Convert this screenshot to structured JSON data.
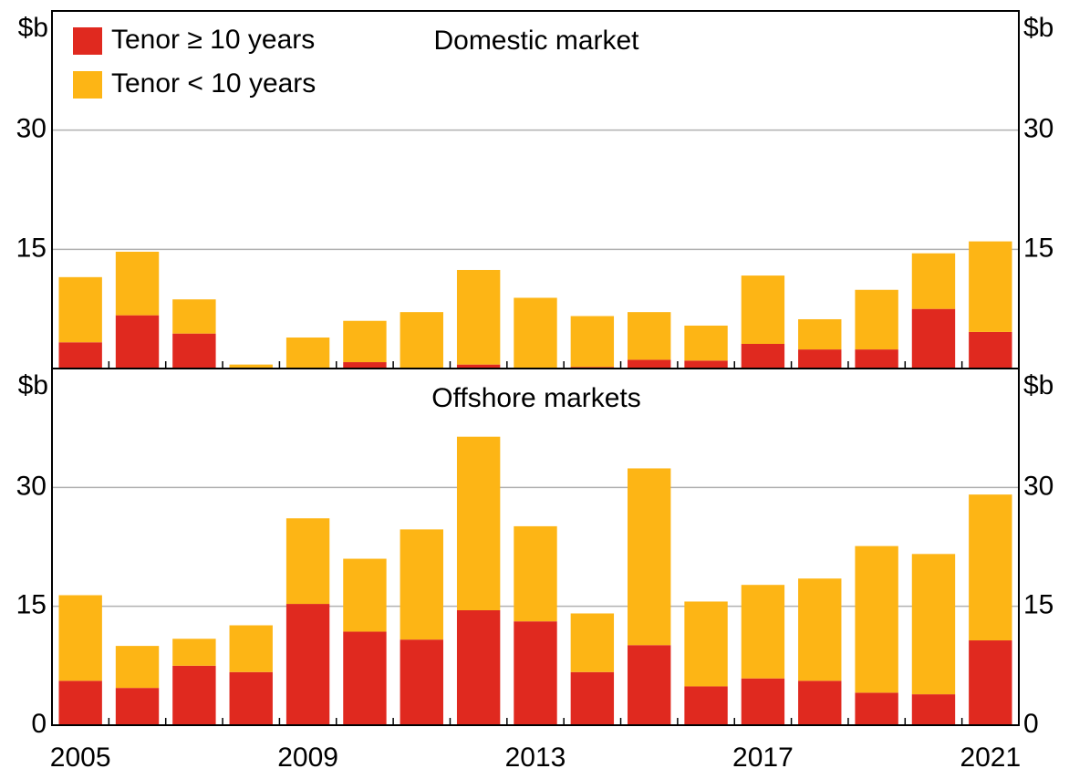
{
  "chart_data": [
    {
      "type": "bar",
      "stacked": true,
      "title": "Domestic market",
      "ylabel": "$b",
      "ylim": [
        0,
        45
      ],
      "yticks": [
        15,
        30
      ],
      "grid": true,
      "legend": "upper left",
      "series": [
        {
          "name": "Tenor ≥ 10 years",
          "color": "#e0291f",
          "values": [
            3.3,
            6.7,
            4.4,
            0.1,
            0,
            0.8,
            0.1,
            0.5,
            0,
            0.2,
            1.1,
            1.0,
            3.1,
            2.4,
            2.4,
            7.5,
            4.6
          ]
        },
        {
          "name": "Tenor < 10 years",
          "color": "#fdb515",
          "values": [
            8.2,
            8.0,
            4.3,
            0.4,
            3.9,
            5.2,
            7.0,
            11.9,
            8.9,
            6.4,
            6.0,
            4.4,
            8.6,
            3.8,
            7.5,
            7.0,
            11.4
          ]
        }
      ]
    },
    {
      "type": "bar",
      "stacked": true,
      "title": "Offshore markets",
      "ylabel": "$b",
      "categories": [
        "2005",
        null,
        null,
        null,
        "2009",
        null,
        null,
        null,
        "2013",
        null,
        null,
        null,
        "2017",
        null,
        null,
        null,
        "2021"
      ],
      "ylim": [
        0,
        45
      ],
      "yticks": [
        0,
        15,
        30
      ],
      "grid": true,
      "series": [
        {
          "color": "#e0291f",
          "values": [
            5.6,
            4.7,
            7.5,
            6.7,
            15.3,
            11.8,
            10.8,
            14.5,
            13.1,
            6.7,
            10.1,
            4.9,
            5.9,
            5.6,
            4.1,
            3.9,
            10.7
          ]
        },
        {
          "color": "#fdb515",
          "values": [
            10.8,
            5.3,
            3.4,
            5.9,
            10.8,
            9.2,
            13.9,
            21.9,
            12.0,
            7.4,
            22.3,
            10.7,
            11.8,
            12.9,
            18.5,
            17.7,
            18.4
          ]
        }
      ]
    }
  ]
}
